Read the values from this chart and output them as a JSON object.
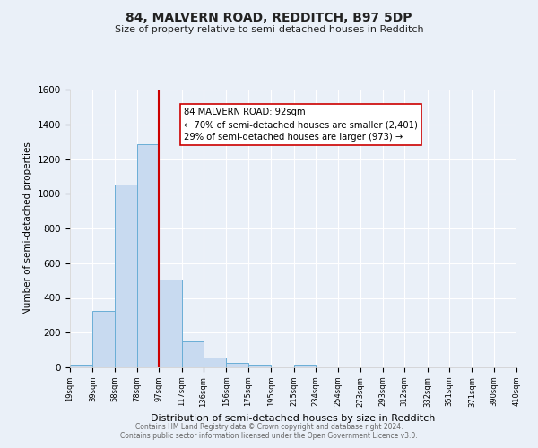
{
  "title": "84, MALVERN ROAD, REDDITCH, B97 5DP",
  "subtitle": "Size of property relative to semi-detached houses in Redditch",
  "xlabel": "Distribution of semi-detached houses by size in Redditch",
  "ylabel": "Number of semi-detached properties",
  "bin_labels": [
    "19sqm",
    "39sqm",
    "58sqm",
    "78sqm",
    "97sqm",
    "117sqm",
    "136sqm",
    "156sqm",
    "175sqm",
    "195sqm",
    "215sqm",
    "234sqm",
    "254sqm",
    "273sqm",
    "293sqm",
    "312sqm",
    "332sqm",
    "351sqm",
    "371sqm",
    "390sqm",
    "410sqm"
  ],
  "bin_edges": [
    19,
    39,
    58,
    78,
    97,
    117,
    136,
    156,
    175,
    195,
    215,
    234,
    254,
    273,
    293,
    312,
    332,
    351,
    371,
    390,
    410
  ],
  "bar_heights": [
    15,
    325,
    1055,
    1285,
    505,
    150,
    55,
    25,
    15,
    0,
    15,
    0,
    0,
    0,
    0,
    0,
    0,
    0,
    0,
    0
  ],
  "bar_color": "#c8daf0",
  "bar_edge_color": "#6aaed6",
  "property_line": 97,
  "property_line_color": "#cc0000",
  "annotation_line1": "84 MALVERN ROAD: 92sqm",
  "annotation_line2": "← 70% of semi-detached houses are smaller (2,401)",
  "annotation_line3": "29% of semi-detached houses are larger (973) →",
  "annotation_box_color": "#ffffff",
  "annotation_box_edge": "#cc0000",
  "ylim": [
    0,
    1600
  ],
  "yticks": [
    0,
    200,
    400,
    600,
    800,
    1000,
    1200,
    1400,
    1600
  ],
  "background_color": "#eaf0f8",
  "grid_color": "#ffffff",
  "footer_line1": "Contains HM Land Registry data © Crown copyright and database right 2024.",
  "footer_line2": "Contains public sector information licensed under the Open Government Licence v3.0."
}
